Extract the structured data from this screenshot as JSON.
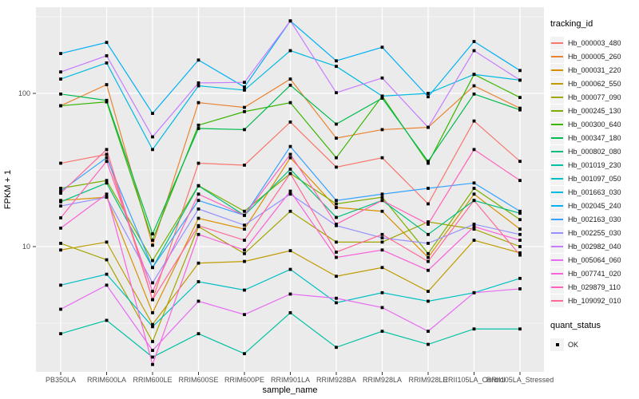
{
  "chart_data": {
    "type": "line",
    "title": "",
    "xlabel": "sample_name",
    "ylabel": "FPKM + 1",
    "y_scale": "log10",
    "ylim": [
      1.5,
      365
    ],
    "grid": true,
    "legend_position": "right",
    "legend_title": "tracking_id",
    "point_shape": "filled-square",
    "point_color": "#000000",
    "y_ticks": [
      {
        "label": "100",
        "value": 100
      },
      {
        "label": "10",
        "value": 10
      }
    ],
    "y_minor_values": [
      316.23,
      31.62,
      3.162
    ],
    "categories": [
      "PB350LA",
      "RRIM600LA",
      "RRIM600LE",
      "RRIM600SE",
      "RRIM600PE",
      "RRIM901LA",
      "RRIM928BA",
      "RRIM928LA",
      "RRIM928LE",
      "RRII105LA_Control",
      "RRII105LA_Stressed"
    ],
    "series": [
      {
        "name": "Hb_000003_480",
        "color": "#F8766D",
        "values_fpkm_plus_1": [
          35,
          40,
          4.5,
          35,
          34,
          65,
          33,
          38,
          19,
          66,
          36
        ]
      },
      {
        "name": "Hb_000005_260",
        "color": "#EA8331",
        "values_fpkm_plus_1": [
          83,
          114,
          10.2,
          87,
          81,
          124,
          51,
          58,
          60,
          112,
          80
        ]
      },
      {
        "name": "Hb_000031_220",
        "color": "#D89000",
        "values_fpkm_plus_1": [
          20,
          21,
          3.7,
          15.3,
          13,
          38,
          18,
          17,
          8.5,
          22,
          13
        ]
      },
      {
        "name": "Hb_000062_550",
        "color": "#C09B00",
        "values_fpkm_plus_1": [
          9.5,
          10.7,
          3.1,
          7.8,
          8.0,
          9.4,
          6.4,
          7.3,
          5.1,
          11,
          9.1
        ]
      },
      {
        "name": "Hb_000077_090",
        "color": "#A3A500",
        "values_fpkm_plus_1": [
          10.5,
          8.2,
          2.4,
          13.5,
          9.0,
          17,
          10.7,
          10.7,
          14.5,
          13,
          10
        ]
      },
      {
        "name": "Hb_000245_130",
        "color": "#7CAE00",
        "values_fpkm_plus_1": [
          24,
          27,
          8.1,
          25,
          17,
          30,
          19,
          21,
          9.0,
          24,
          15
        ]
      },
      {
        "name": "Hb_000300_640",
        "color": "#39B600",
        "values_fpkm_plus_1": [
          83,
          88,
          11,
          62,
          76,
          87,
          38,
          96,
          35,
          133,
          94
        ]
      },
      {
        "name": "Hb_000347_180",
        "color": "#00BB4E",
        "values_fpkm_plus_1": [
          99,
          90,
          12.1,
          59,
          58,
          113,
          63,
          93,
          36,
          99,
          78
        ]
      },
      {
        "name": "Hb_000802_080",
        "color": "#00BF7D",
        "values_fpkm_plus_1": [
          19.6,
          26,
          7.3,
          24.9,
          16,
          32,
          15.5,
          20,
          12,
          20,
          16.5
        ]
      },
      {
        "name": "Hb_001019_230",
        "color": "#00C1A3",
        "values_fpkm_plus_1": [
          2.7,
          3.3,
          1.9,
          2.7,
          2.0,
          3.7,
          2.2,
          2.8,
          2.3,
          2.9,
          2.9
        ]
      },
      {
        "name": "Hb_001097_050",
        "color": "#00BFC4",
        "values_fpkm_plus_1": [
          5.6,
          6.6,
          3.0,
          5.9,
          5.2,
          7.1,
          4.3,
          5.0,
          4.4,
          5.0,
          6.2
        ]
      },
      {
        "name": "Hb_001663_030",
        "color": "#00BAE0",
        "values_fpkm_plus_1": [
          124,
          158,
          43,
          112,
          105,
          190,
          150,
          96,
          100,
          133,
          122
        ]
      },
      {
        "name": "Hb_002045_240",
        "color": "#00B0F6",
        "values_fpkm_plus_1": [
          182,
          215,
          74,
          165,
          110,
          297,
          163,
          200,
          95,
          218,
          141
        ]
      },
      {
        "name": "Hb_002163_030",
        "color": "#35A2FF",
        "values_fpkm_plus_1": [
          23,
          38,
          7.3,
          20,
          16,
          45,
          20,
          22,
          24,
          26,
          17
        ]
      },
      {
        "name": "Hb_002255_030",
        "color": "#9590FF",
        "values_fpkm_plus_1": [
          18.4,
          21,
          5.8,
          17.6,
          13.8,
          22,
          13.7,
          11.4,
          10.5,
          14,
          12
        ]
      },
      {
        "name": "Hb_002982_040",
        "color": "#C77CFF",
        "values_fpkm_plus_1": [
          138,
          176,
          52,
          117,
          118,
          297,
          101,
          126,
          60,
          190,
          122
        ]
      },
      {
        "name": "Hb_005064_060",
        "color": "#E76BF3",
        "values_fpkm_plus_1": [
          3.9,
          5.6,
          2.1,
          4.4,
          3.6,
          4.9,
          4.6,
          4.0,
          2.8,
          5.0,
          5.3
        ]
      },
      {
        "name": "Hb_007741_020",
        "color": "#FA62DB",
        "values_fpkm_plus_1": [
          13.2,
          22,
          1.7,
          12,
          9.5,
          23,
          8.5,
          9.5,
          7.0,
          13.5,
          11
        ]
      },
      {
        "name": "Hb_029879_110",
        "color": "#FF62BC",
        "values_fpkm_plus_1": [
          15.4,
          36,
          5.1,
          22,
          16,
          40,
          14,
          20,
          14,
          43,
          27
        ]
      },
      {
        "name": "Hb_109092_010",
        "color": "#FF6A98",
        "values_fpkm_plus_1": [
          22.3,
          43,
          4.5,
          13.7,
          11,
          30,
          9.2,
          12,
          8.0,
          20,
          8.8
        ]
      }
    ],
    "quant_status": {
      "title": "quant_status",
      "values": [
        "OK"
      ]
    }
  },
  "style_colors": {
    "panel_bg": "#EBEBEB",
    "grid_major": "#FFFFFF",
    "grid_minor": "#FFFFFF",
    "axis_text": "#4D4D4D",
    "tick_mark": "#333333",
    "legend_key_bg": "#F2F2F2",
    "marker": "#000000"
  }
}
